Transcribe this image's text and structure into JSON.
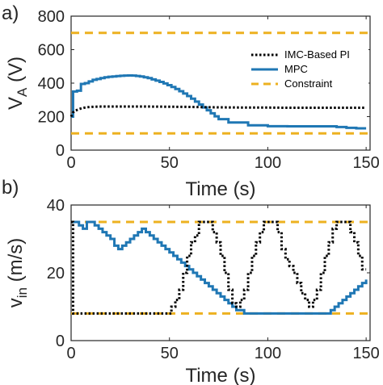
{
  "chart_data": [
    {
      "panel": "a)",
      "type": "line",
      "xlabel": "Time (s)",
      "ylabel_main": "V",
      "ylabel_sub": "A",
      "ylabel_unit": " (V)",
      "xlim": [
        0,
        152
      ],
      "ylim": [
        0,
        800
      ],
      "xticks": [
        "0",
        "50",
        "100",
        "150"
      ],
      "xtick_values": [
        0,
        50,
        100,
        150
      ],
      "yticks": [
        "0",
        "200",
        "400",
        "600",
        "800"
      ],
      "ytick_values": [
        0,
        200,
        400,
        600,
        800
      ],
      "legend": [
        "IMC-Based PI",
        "MPC",
        "Constraint"
      ],
      "legend_position": "upper right",
      "series": [
        {
          "name": "IMC-Based PI",
          "style": "dotted",
          "color": "#000000",
          "x": [
            0,
            1,
            2,
            4,
            6,
            8,
            10,
            15,
            20,
            30,
            40,
            50,
            60,
            70,
            80,
            90,
            100,
            110,
            120,
            130,
            140,
            150
          ],
          "y": [
            200,
            225,
            235,
            245,
            252,
            256,
            258,
            260,
            260,
            260,
            260,
            259,
            258,
            256,
            255,
            254,
            254,
            253,
            253,
            253,
            253,
            253
          ]
        },
        {
          "name": "MPC",
          "style": "solid",
          "color": "#1f77b4",
          "step": true,
          "x": [
            0,
            1,
            3,
            5,
            7,
            9,
            11,
            13,
            15,
            17,
            19,
            21,
            23,
            25,
            27,
            29,
            31,
            33,
            35,
            37,
            39,
            41,
            43,
            45,
            47,
            49,
            51,
            53,
            55,
            57,
            59,
            61,
            63,
            65,
            67,
            69,
            71,
            73,
            75,
            80,
            90,
            100,
            110,
            120,
            130,
            135,
            140,
            145,
            150
          ],
          "y": [
            200,
            350,
            355,
            395,
            400,
            410,
            420,
            425,
            430,
            435,
            438,
            440,
            442,
            444,
            445,
            446,
            445,
            443,
            440,
            435,
            430,
            422,
            415,
            407,
            398,
            388,
            377,
            365,
            352,
            338,
            323,
            307,
            290,
            272,
            255,
            238,
            220,
            202,
            185,
            165,
            148,
            143,
            142,
            142,
            142,
            138,
            133,
            130,
            130
          ]
        },
        {
          "name": "Constraint",
          "style": "dashed",
          "color": "#edb120",
          "x": [
            0,
            152
          ],
          "y": [
            700,
            700
          ]
        },
        {
          "name": "Constraint",
          "style": "dashed",
          "color": "#edb120",
          "x": [
            0,
            152
          ],
          "y": [
            100,
            100
          ]
        }
      ]
    },
    {
      "panel": "b)",
      "type": "line",
      "xlabel": "Time (s)",
      "ylabel_main": "v",
      "ylabel_sub": "in",
      "ylabel_unit": " (m/s)",
      "xlim": [
        0,
        152
      ],
      "ylim": [
        0,
        40
      ],
      "xticks": [
        "0",
        "50",
        "100",
        "150"
      ],
      "xtick_values": [
        0,
        50,
        100,
        150
      ],
      "yticks": [
        "0",
        "20",
        "40"
      ],
      "ytick_values": [
        0,
        20,
        40
      ],
      "series": [
        {
          "name": "IMC-Based PI",
          "style": "dotted",
          "color": "#000000",
          "step": true,
          "x": [
            0,
            1,
            50,
            51,
            53,
            55,
            57,
            59,
            61,
            63,
            65,
            70,
            72,
            74,
            76,
            78,
            80,
            82,
            84,
            86,
            88,
            90,
            92,
            94,
            96,
            98,
            100,
            105,
            107,
            109,
            111,
            113,
            115,
            117,
            119,
            121,
            123,
            125,
            127,
            129,
            131,
            133,
            135,
            140,
            142,
            144,
            146,
            148,
            150
          ],
          "y": [
            35,
            8,
            8,
            10,
            12,
            15,
            20,
            25,
            29,
            31,
            35,
            35,
            32,
            29,
            25,
            20,
            15,
            11,
            10,
            12,
            15,
            20,
            25,
            29,
            32,
            35,
            35,
            32,
            27,
            24,
            22,
            20,
            17,
            14,
            12,
            10,
            12,
            15,
            20,
            25,
            29,
            33,
            35,
            35,
            32,
            29,
            25,
            21,
            21
          ]
        },
        {
          "name": "MPC",
          "style": "solid",
          "color": "#1f77b4",
          "step": true,
          "x": [
            0,
            2,
            4,
            6,
            8,
            10,
            12,
            14,
            16,
            18,
            20,
            22,
            24,
            26,
            28,
            30,
            32,
            34,
            36,
            38,
            40,
            42,
            44,
            46,
            48,
            50,
            52,
            54,
            56,
            58,
            60,
            62,
            64,
            66,
            68,
            70,
            72,
            74,
            76,
            78,
            80,
            82,
            84,
            86,
            88,
            90,
            95,
            100,
            110,
            120,
            125,
            130,
            132,
            134,
            136,
            138,
            140,
            142,
            144,
            146,
            148,
            150
          ],
          "y": [
            35,
            35,
            34,
            33,
            35,
            35,
            34,
            33,
            32,
            31,
            30,
            28,
            27,
            28,
            29,
            30,
            31,
            32,
            33,
            32,
            31,
            30,
            29,
            28,
            27,
            26,
            25,
            24,
            23,
            22,
            21,
            20,
            19,
            18,
            17,
            16,
            15,
            14,
            13,
            12,
            11,
            10,
            9,
            9,
            8,
            8,
            8,
            8,
            8,
            8,
            8,
            8,
            9,
            10,
            11,
            12,
            13,
            14,
            15,
            16,
            17,
            18
          ]
        },
        {
          "name": "Constraint",
          "style": "dashed",
          "color": "#edb120",
          "x": [
            0,
            152
          ],
          "y": [
            35,
            35
          ]
        },
        {
          "name": "Constraint",
          "style": "dashed",
          "color": "#edb120",
          "x": [
            0,
            152
          ],
          "y": [
            8,
            8
          ]
        }
      ]
    }
  ]
}
